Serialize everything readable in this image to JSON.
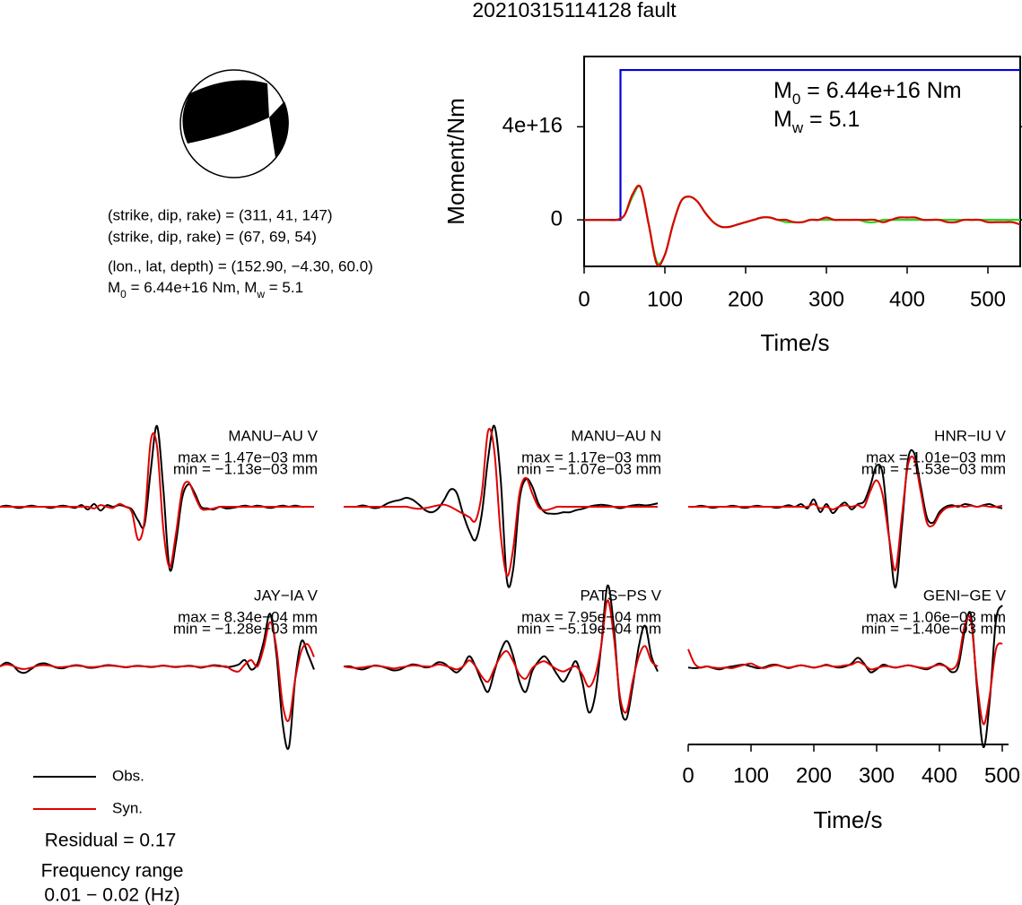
{
  "title": "20210315114128 fault",
  "mechanism": {
    "plane1": "(strike, dip, rake) = (311, 41, 147)",
    "plane2": "(strike, dip, rake) = (67, 69, 54)",
    "location": "(lon., lat, depth) = (152.90, −4.30, 60.0)",
    "moment_line": [
      "M",
      "0",
      " = 6.44e+16 Nm, M",
      "w",
      " = 5.1"
    ]
  },
  "residual": "Residual = 0.17",
  "frequency_title": "Frequency range",
  "frequency_range": "0.01 − 0.02 (Hz)",
  "chart_data": [
    {
      "type": "line",
      "xlabel": "Time/s",
      "ylabel": "Moment/Nm",
      "xlim": [
        0,
        540
      ],
      "xticks": [
        0,
        100,
        200,
        300,
        400,
        500
      ],
      "ylim": [
        -2e+16,
        7.02e+16
      ],
      "yticks": [
        0,
        {
          "value": 4e+16,
          "label": "4e+16"
        }
      ],
      "annotations": [
        [
          "M",
          "0",
          " = 6.44e+16 Nm"
        ],
        [
          "M",
          "w",
          " = 5.1"
        ]
      ],
      "x": [
        0,
        10,
        20,
        30,
        40,
        50,
        60,
        70,
        80,
        90,
        100,
        110,
        120,
        130,
        140,
        150,
        160,
        170,
        180,
        190,
        200,
        210,
        220,
        230,
        240,
        250,
        260,
        270,
        280,
        290,
        300,
        310,
        320,
        330,
        340,
        350,
        360,
        370,
        380,
        390,
        400,
        410,
        420,
        430,
        440,
        450,
        460,
        470,
        480,
        490,
        500,
        510,
        520,
        530,
        540
      ],
      "series": [
        {
          "color": "#0000dd",
          "smooth": false,
          "x": [
            0,
            45,
            45,
            540
          ],
          "values": [
            0,
            0,
            6.44e+16,
            6.44e+16
          ]
        },
        {
          "color": "#22dd22",
          "smooth": true,
          "values": [
            0,
            0,
            0,
            0,
            0,
            2000000000000000.0,
            1e+16,
            1.4e+16,
            -2000000000000000.0,
            -1.8e+16,
            -1.5e+16,
            -2000000000000000.0,
            8000000000000000.0,
            1e+16,
            8000000000000000.0,
            3000000000000000.0,
            -1000000000000000.0,
            -3000000000000000.0,
            -3000000000000000.0,
            -2000000000000000.0,
            -1000000000000000.0,
            0,
            1000000000000000.0,
            1000000000000000.0,
            0,
            -1000000000000000.0,
            -1000000000000000.0,
            -1000000000000000.0,
            0,
            0,
            0,
            0,
            0,
            0,
            0,
            -1000000000000000.0,
            -1000000000000000.0,
            0,
            0,
            0,
            0,
            0,
            0,
            0,
            0,
            0,
            0,
            0,
            0,
            0,
            0,
            0,
            0,
            0,
            0
          ]
        },
        {
          "color": "#dd0000",
          "smooth": true,
          "values": [
            0,
            0,
            0,
            0,
            0,
            2000000000000000.0,
            1.1e+16,
            1.4e+16,
            -2000000000000000.0,
            -1.9e+16,
            -1.5e+16,
            -2000000000000000.0,
            8000000000000000.0,
            1e+16,
            8000000000000000.0,
            3000000000000000.0,
            -1000000000000000.0,
            -3000000000000000.0,
            -3000000000000000.0,
            -2000000000000000.0,
            -1000000000000000.0,
            0,
            1000000000000000.0,
            1000000000000000.0,
            0,
            0,
            -1000000000000000.0,
            -1000000000000000.0,
            0,
            0,
            1000000000000000.0,
            0,
            0,
            0,
            0,
            0,
            0,
            -1000000000000000.0,
            0,
            1000000000000000.0,
            1000000000000000.0,
            1000000000000000.0,
            0,
            0,
            0,
            -1000000000000000.0,
            -1000000000000000.0,
            0,
            0,
            0,
            -1000000000000000.0,
            -1000000000000000.0,
            -1000000000000000.0,
            -1000000000000000.0,
            -2000000000000000.0
          ]
        }
      ]
    },
    {
      "type": "waveforms",
      "xlabel": "Time/s",
      "xlim": [
        0,
        510
      ],
      "xticks": [
        0,
        100,
        200,
        300,
        400,
        500
      ],
      "x": [
        0,
        10,
        20,
        30,
        40,
        50,
        60,
        70,
        80,
        90,
        100,
        110,
        120,
        130,
        140,
        150,
        160,
        170,
        180,
        190,
        200,
        210,
        220,
        230,
        240,
        250,
        260,
        270,
        280,
        290,
        300,
        310,
        320,
        330,
        340,
        350,
        360,
        370,
        380,
        390,
        400,
        410,
        420,
        430,
        440,
        450,
        460,
        470,
        480,
        490,
        500
      ],
      "series": [
        {
          "name": "Obs.",
          "color": "#000000"
        },
        {
          "name": "Syn.",
          "color": "#e00000"
        }
      ],
      "panels": [
        {
          "station": "MANU−AU V",
          "max_label": "max = 1.47e−03 mm",
          "min_label": "min = −1.13e−03 mm",
          "traces": [
            [
              0,
              2e-05,
              0,
              -2e-05,
              0,
              2e-05,
              0,
              0,
              -2e-05,
              0,
              2e-05,
              0,
              -2e-05,
              3e-05,
              -5e-05,
              5e-05,
              -7e-05,
              3e-05,
              0,
              3e-05,
              0,
              -5e-05,
              -0.00025,
              -0.00033,
              0.00066,
              0.00147,
              0.00033,
              -0.00113,
              -0.00066,
              0.00016,
              0.00041,
              0.00025,
              0,
              -3e-05,
              -5e-05,
              0,
              -3e-05,
              -2e-05,
              0,
              2e-05,
              0,
              2e-05,
              0,
              -2e-05,
              0,
              2e-05,
              0,
              2e-05,
              0,
              0,
              0
            ],
            [
              0,
              0,
              0,
              0,
              0,
              0,
              0,
              0,
              0,
              0,
              0,
              0,
              0,
              0,
              0,
              -3e-05,
              3e-05,
              0,
              -2e-05,
              5e-05,
              0,
              -0.0001,
              -0.0006,
              -0.00025,
              0.0012,
              0.0011,
              -0.0004,
              -0.0011,
              -0.0005,
              0.0003,
              0.00045,
              0.0002,
              -3e-05,
              -5e-05,
              -3e-05,
              0,
              0,
              0,
              0,
              0,
              0,
              0,
              0,
              0,
              0,
              0,
              0,
              0,
              0,
              0,
              0
            ]
          ]
        },
        {
          "station": "MANU−AU N",
          "max_label": "max = 1.17e−03 mm",
          "min_label": "min = −1.07e−03 mm",
          "traces": [
            [
              0,
              0,
              0,
              2e-05,
              0,
              -2e-05,
              0,
              5e-05,
              8e-05,
              0.0001,
              0.00013,
              0.0001,
              3e-05,
              -5e-05,
              -8e-05,
              -3e-05,
              0.0001,
              0.00025,
              0.0002,
              -0.0001,
              -0.00035,
              -0.00048,
              -0.0001,
              0.0007,
              0.00117,
              0.0004,
              -0.00107,
              -0.0009,
              0.0001,
              0.0004,
              0.0003,
              5e-05,
              -8e-05,
              -0.0001,
              -0.0001,
              -8e-05,
              -8e-05,
              -5e-05,
              -3e-05,
              0,
              2e-05,
              3e-05,
              2e-05,
              0,
              -2e-05,
              0,
              2e-05,
              3e-05,
              2e-05,
              3e-05,
              5e-05
            ],
            [
              0,
              0,
              0,
              0,
              0,
              0,
              0,
              0,
              0,
              0,
              0,
              -2e-05,
              -3e-05,
              -2e-05,
              0,
              2e-05,
              3e-05,
              0,
              -5e-05,
              -0.0001,
              -0.00015,
              -0.0002,
              0.0002,
              0.0011,
              0.0008,
              -0.0004,
              -0.001,
              -0.0006,
              0.0002,
              0.00042,
              0.0002,
              0,
              -5e-05,
              -3e-05,
              0,
              0,
              0,
              0,
              0,
              0,
              0,
              0,
              0,
              0,
              0,
              0,
              0,
              0,
              0,
              0,
              0
            ]
          ]
        },
        {
          "station": "HNR−IU V",
          "max_label": "max = 1.01e−03 mm",
          "min_label": "min = −1.53e−03 mm",
          "traces": [
            [
              0,
              0,
              2e-05,
              0,
              -2e-05,
              0,
              0,
              2e-05,
              0,
              -2e-05,
              0,
              2e-05,
              0,
              0,
              -2e-05,
              0,
              3e-05,
              0,
              5e-05,
              -3e-05,
              0.00014,
              -0.0001,
              5e-05,
              -0.00012,
              0,
              8e-05,
              -5e-05,
              5e-05,
              0.0001,
              0.0004,
              0.00078,
              0.0006,
              -0.0006,
              -0.00153,
              -0.0004,
              0.0009,
              0.00101,
              0.0004,
              -0.0002,
              -0.0003,
              -0.0001,
              0,
              3e-05,
              0,
              5e-05,
              3e-05,
              0,
              3e-05,
              5e-05,
              0,
              -3e-05
            ],
            [
              0,
              0,
              0,
              0,
              0,
              0,
              0,
              0,
              0,
              0,
              0,
              0,
              0,
              0,
              0,
              0,
              0,
              0,
              0,
              0,
              5e-05,
              -3e-05,
              0,
              -5e-05,
              0,
              3e-05,
              0,
              3e-05,
              0,
              0.0003,
              0.0005,
              0.0002,
              -0.0006,
              -0.0012,
              -0.0002,
              0.0008,
              0.0009,
              0.0003,
              -0.0003,
              -0.00035,
              -0.00015,
              -3e-05,
              0,
              2e-05,
              0,
              2e-05,
              0,
              2e-05,
              0,
              0,
              2e-05
            ]
          ]
        },
        {
          "station": "JAY−IA V",
          "max_label": "max = 8.34e−04 mm",
          "min_label": "min = −1.28e−03 mm",
          "traces": [
            [
              0,
              6e-05,
              2e-05,
              -8e-05,
              -0.0001,
              -4e-05,
              3e-05,
              5e-05,
              2e-05,
              -2e-05,
              -3e-05,
              0,
              2e-05,
              1e-05,
              -2e-05,
              -2e-05,
              0,
              2e-05,
              1.5e-05,
              0,
              -1.5e-05,
              0,
              1e-05,
              0,
              -1e-05,
              0,
              1.5e-05,
              0,
              -1e-05,
              0,
              1e-05,
              0,
              -2e-05,
              0,
              2e-05,
              1e-05,
              -1e-05,
              0,
              3e-05,
              0.0001,
              -5e-05,
              5e-05,
              0.0004,
              0.000834,
              0.0002,
              -0.0009,
              -0.00128,
              -0.0002,
              0.0004,
              0.0002,
              -5e-05
            ],
            [
              0,
              3e-05,
              1e-05,
              -3e-05,
              -4e-05,
              -2e-05,
              1e-05,
              2e-05,
              1e-05,
              -1e-05,
              -1e-05,
              0,
              1e-05,
              5e-06,
              -1e-05,
              -1e-05,
              0,
              1e-05,
              1e-05,
              0,
              -1e-05,
              0,
              5e-06,
              0,
              -5e-06,
              0,
              1e-05,
              0,
              -5e-06,
              0,
              5e-06,
              0,
              -1e-05,
              0,
              1e-05,
              0,
              0,
              -6e-05,
              -8e-05,
              3e-05,
              0.0001,
              0,
              0.0003,
              0.0007,
              0.0003,
              -0.0006,
              -0.00085,
              -0.0002,
              0.00025,
              0.00035,
              0.00015
            ]
          ]
        },
        {
          "station": "PATS−PS V",
          "max_label": "max = 7.95e−04 mm",
          "min_label": "min = −5.19e−04 mm",
          "traces": [
            [
              0,
              0,
              -2e-05,
              -3e-05,
              -1e-05,
              1e-05,
              0,
              -2e-05,
              -4e-05,
              -3e-05,
              0,
              2e-05,
              1e-05,
              -1e-05,
              0,
              4e-05,
              3e-05,
              -2e-05,
              -6e-05,
              0,
              0.0001,
              0,
              -0.00015,
              -0.00025,
              -5e-05,
              0.00015,
              0.00025,
              0.0001,
              -0.00015,
              -0.00025,
              -5e-05,
              5e-05,
              0.0001,
              2e-05,
              -8e-05,
              -0.00015,
              -5e-05,
              5e-05,
              -0.00015,
              -0.00045,
              -0.0003,
              0.0002,
              0.000795,
              0.0004,
              -0.00035,
              -0.000519,
              -0.0002,
              0.0002,
              0.0004,
              0.0001,
              -5e-05
            ],
            [
              0,
              -1e-05,
              -1.5e-05,
              -1e-05,
              0,
              5e-06,
              0,
              -1e-05,
              -2e-05,
              -1e-05,
              0,
              1e-05,
              5e-06,
              0,
              0,
              2e-05,
              1e-05,
              -1e-05,
              -3e-05,
              0,
              6e-05,
              0,
              -0.0001,
              -0.00015,
              -2e-05,
              0.0001,
              0.00015,
              5e-05,
              -8e-05,
              -0.00012,
              -2e-05,
              3e-05,
              5e-05,
              1e-05,
              -3e-05,
              -5e-05,
              -2e-05,
              0,
              -8e-05,
              -0.0002,
              -0.0001,
              0.0002,
              0.00065,
              0.0003,
              -0.0003,
              -0.00045,
              -0.00015,
              0.0001,
              0.0002,
              5e-05,
              0
            ]
          ]
        },
        {
          "station": "GENI−GE V",
          "max_label": "max = 1.06e−03 mm",
          "min_label": "min = −1.40e−03 mm",
          "traces": [
            [
              -2e-05,
              -3e-05,
              -2e-05,
              0,
              -3e-05,
              -5e-05,
              -2e-05,
              0,
              2e-05,
              3e-05,
              0,
              -3e-05,
              -2e-05,
              2e-05,
              3e-05,
              0,
              -3e-05,
              0,
              2e-05,
              0,
              -2e-05,
              0,
              3e-05,
              0,
              -2e-05,
              0,
              5e-05,
              0.00015,
              5e-05,
              -0.0001,
              -5e-05,
              3e-05,
              0,
              -2e-05,
              0,
              2e-05,
              0,
              -3e-05,
              -5e-05,
              0,
              5e-05,
              0,
              -0.0001,
              0,
              0.0006,
              0.0009,
              -0.0004,
              -0.0014,
              -0.0006,
              0.0008,
              0.00106
            ],
            [
              0.0003,
              5e-05,
              -2e-05,
              0,
              -2e-05,
              -3e-05,
              -2e-05,
              -3e-05,
              0,
              3e-05,
              5e-05,
              0,
              -3e-05,
              0,
              2e-05,
              0,
              -2e-05,
              0,
              2e-05,
              0,
              -2e-05,
              0,
              2e-05,
              0,
              0,
              2e-05,
              3e-05,
              8e-05,
              3e-05,
              -5e-05,
              -3e-05,
              0,
              0,
              -2e-05,
              0,
              2e-05,
              0,
              -2e-05,
              -3e-05,
              0,
              3e-05,
              0,
              -5e-05,
              0.0001,
              0.0007,
              0.0008,
              -0.0003,
              -0.001,
              -0.0005,
              0.0003,
              0.0004
            ]
          ]
        }
      ]
    }
  ]
}
